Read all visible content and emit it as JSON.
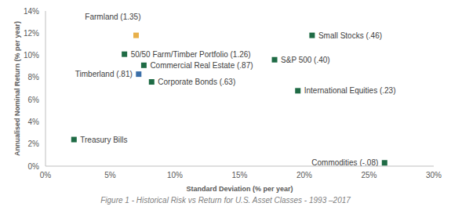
{
  "chart_data": {
    "type": "scatter",
    "title": "Figure 1 - Historical Risk vs Return for U.S. Asset Classes - 1993 –2017",
    "x_label": "Standard Deviation (% per year)",
    "y_label": "Annualised Nominal Return (% per year)",
    "labels": [
      "Treasury Bills",
      "Farmland (1.35)",
      "50/50 Farm/Timber Portfolio (1.26)",
      "Commercial Real Estate (.87)",
      "Timberland (.81)",
      "Corporate Bonds (.63)",
      "Small Stocks (.46)",
      "S&P 500 (.40)",
      "International Equities (.23)",
      "Commodities (-.08)"
    ],
    "x": [
      2.2,
      7.0,
      6.1,
      7.6,
      7.2,
      8.2,
      20.6,
      17.7,
      19.5,
      26.2
    ],
    "values": [
      2.4,
      11.8,
      10.1,
      9.1,
      8.3,
      7.6,
      11.8,
      9.6,
      6.8,
      0.3
    ],
    "colors": [
      "#1f6b45",
      "#e8b04a",
      "#1f6b45",
      "#1f6b45",
      "#3b6fa8",
      "#1f6b45",
      "#1f6b45",
      "#1f6b45",
      "#1f6b45",
      "#1f6b45"
    ],
    "marker": "square",
    "xlim": [
      0,
      30
    ],
    "xticks": [
      {
        "value": 0,
        "label": "0%"
      },
      {
        "value": 5,
        "label": "5%"
      },
      {
        "value": 10,
        "label": "10%"
      },
      {
        "value": 15,
        "label": "15%"
      },
      {
        "value": 20,
        "label": "20%"
      },
      {
        "value": 25,
        "label": "25%"
      },
      {
        "value": 30,
        "label": "30%"
      }
    ],
    "ylim": [
      0,
      14
    ],
    "yticks": [
      {
        "value": 0,
        "label": "0%"
      },
      {
        "value": 2,
        "label": "2%"
      },
      {
        "value": 4,
        "label": "4%"
      },
      {
        "value": 6,
        "label": "6%"
      },
      {
        "value": 8,
        "label": "8%"
      },
      {
        "value": 10,
        "label": "10%"
      },
      {
        "value": 12,
        "label": "12%"
      },
      {
        "value": 14,
        "label": "14%"
      }
    ],
    "grid": false
  }
}
